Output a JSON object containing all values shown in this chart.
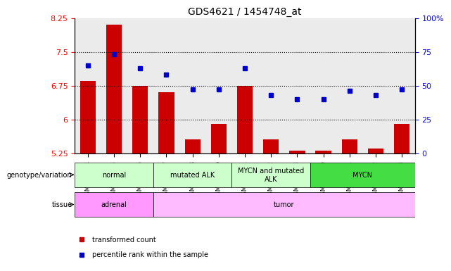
{
  "title": "GDS4621 / 1454748_at",
  "samples": [
    "GSM801624",
    "GSM801625",
    "GSM801626",
    "GSM801617",
    "GSM801618",
    "GSM801619",
    "GSM914181",
    "GSM914182",
    "GSM914183",
    "GSM801620",
    "GSM801621",
    "GSM801622",
    "GSM801623"
  ],
  "bar_values": [
    6.85,
    8.1,
    6.75,
    6.6,
    5.55,
    5.9,
    6.75,
    5.55,
    5.3,
    5.3,
    5.55,
    5.35,
    5.9
  ],
  "dot_values": [
    65,
    73,
    63,
    58,
    47,
    47,
    63,
    43,
    40,
    40,
    46,
    43,
    47
  ],
  "ylim_left": [
    5.25,
    8.25
  ],
  "ylim_right": [
    0,
    100
  ],
  "yticks_left": [
    5.25,
    6.0,
    6.75,
    7.5,
    8.25
  ],
  "yticks_right": [
    0,
    25,
    50,
    75,
    100
  ],
  "ytick_labels_left": [
    "5.25",
    "6",
    "6.75",
    "7.5",
    "8.25"
  ],
  "ytick_labels_right": [
    "0",
    "25",
    "50",
    "75",
    "100%"
  ],
  "hlines": [
    6.0,
    6.75,
    7.5
  ],
  "bar_color": "#cc0000",
  "dot_color": "#0000cc",
  "bar_bottom": 5.25,
  "genotype_groups": [
    {
      "label": "normal",
      "start": 0,
      "end": 3,
      "color": "#aaffaa"
    },
    {
      "label": "mutated ALK",
      "start": 3,
      "end": 6,
      "color": "#aaffaa"
    },
    {
      "label": "MYCN and mutated\nALK",
      "start": 6,
      "end": 9,
      "color": "#aaffaa"
    },
    {
      "label": "MYCN",
      "start": 9,
      "end": 13,
      "color": "#44cc44"
    }
  ],
  "tissue_groups": [
    {
      "label": "adrenal",
      "start": 0,
      "end": 3,
      "color": "#ff99ff"
    },
    {
      "label": "tumor",
      "start": 3,
      "end": 13,
      "color": "#ffaaff"
    }
  ],
  "legend_items": [
    {
      "label": "transformed count",
      "color": "#cc0000",
      "marker": "s"
    },
    {
      "label": "percentile rank within the sample",
      "color": "#0000cc",
      "marker": "s"
    }
  ],
  "row_label_genotype": "genotype/variation",
  "row_label_tissue": "tissue",
  "background_color": "#ffffff"
}
